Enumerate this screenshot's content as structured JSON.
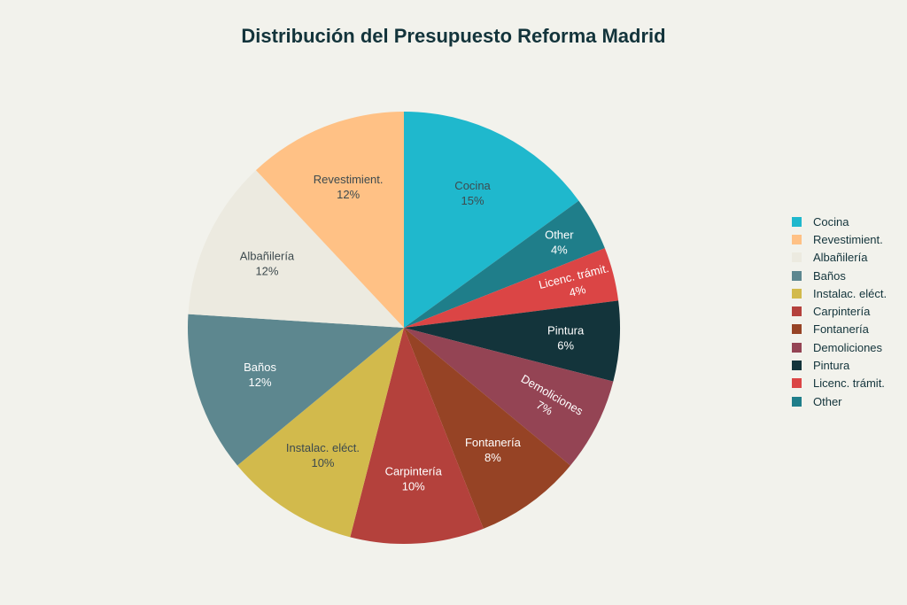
{
  "chart_data": {
    "type": "pie",
    "title": "Distribución del Presupuesto Reforma Madrid",
    "categories": [
      "Cocina",
      "Revestimient.",
      "Albañilería",
      "Baños",
      "Instalac. eléct.",
      "Carpintería",
      "Fontanería",
      "Demoliciones",
      "Pintura",
      "Licenc. trámit.",
      "Other"
    ],
    "values": [
      15,
      12,
      12,
      12,
      10,
      10,
      8,
      7,
      6,
      4,
      4
    ],
    "unit": "%",
    "colors": [
      "#1fb8cd",
      "#ffc185",
      "#eceae0",
      "#5d878f",
      "#d2ba4c",
      "#b4413c",
      "#964325",
      "#944454",
      "#13343b",
      "#db4545",
      "#1f7e8a"
    ],
    "clockwise_order_from_top": [
      "Cocina",
      "Other",
      "Licenc. trámit.",
      "Pintura",
      "Demoliciones",
      "Fontanería",
      "Carpintería",
      "Instalac. eléct.",
      "Baños",
      "Albañilería",
      "Revestimient."
    ],
    "legend_position": "right"
  },
  "legend": {
    "items": [
      {
        "label": "Cocina",
        "color": "#1fb8cd"
      },
      {
        "label": "Revestimient.",
        "color": "#ffc185"
      },
      {
        "label": "Albañilería",
        "color": "#eceae0"
      },
      {
        "label": "Baños",
        "color": "#5d878f"
      },
      {
        "label": "Instalac. eléct.",
        "color": "#d2ba4c"
      },
      {
        "label": "Carpintería",
        "color": "#b4413c"
      },
      {
        "label": "Fontanería",
        "color": "#964325"
      },
      {
        "label": "Demoliciones",
        "color": "#944454"
      },
      {
        "label": "Pintura",
        "color": "#13343b"
      },
      {
        "label": "Licenc. trámit.",
        "color": "#db4545"
      },
      {
        "label": "Other",
        "color": "#1f7e8a"
      }
    ]
  }
}
